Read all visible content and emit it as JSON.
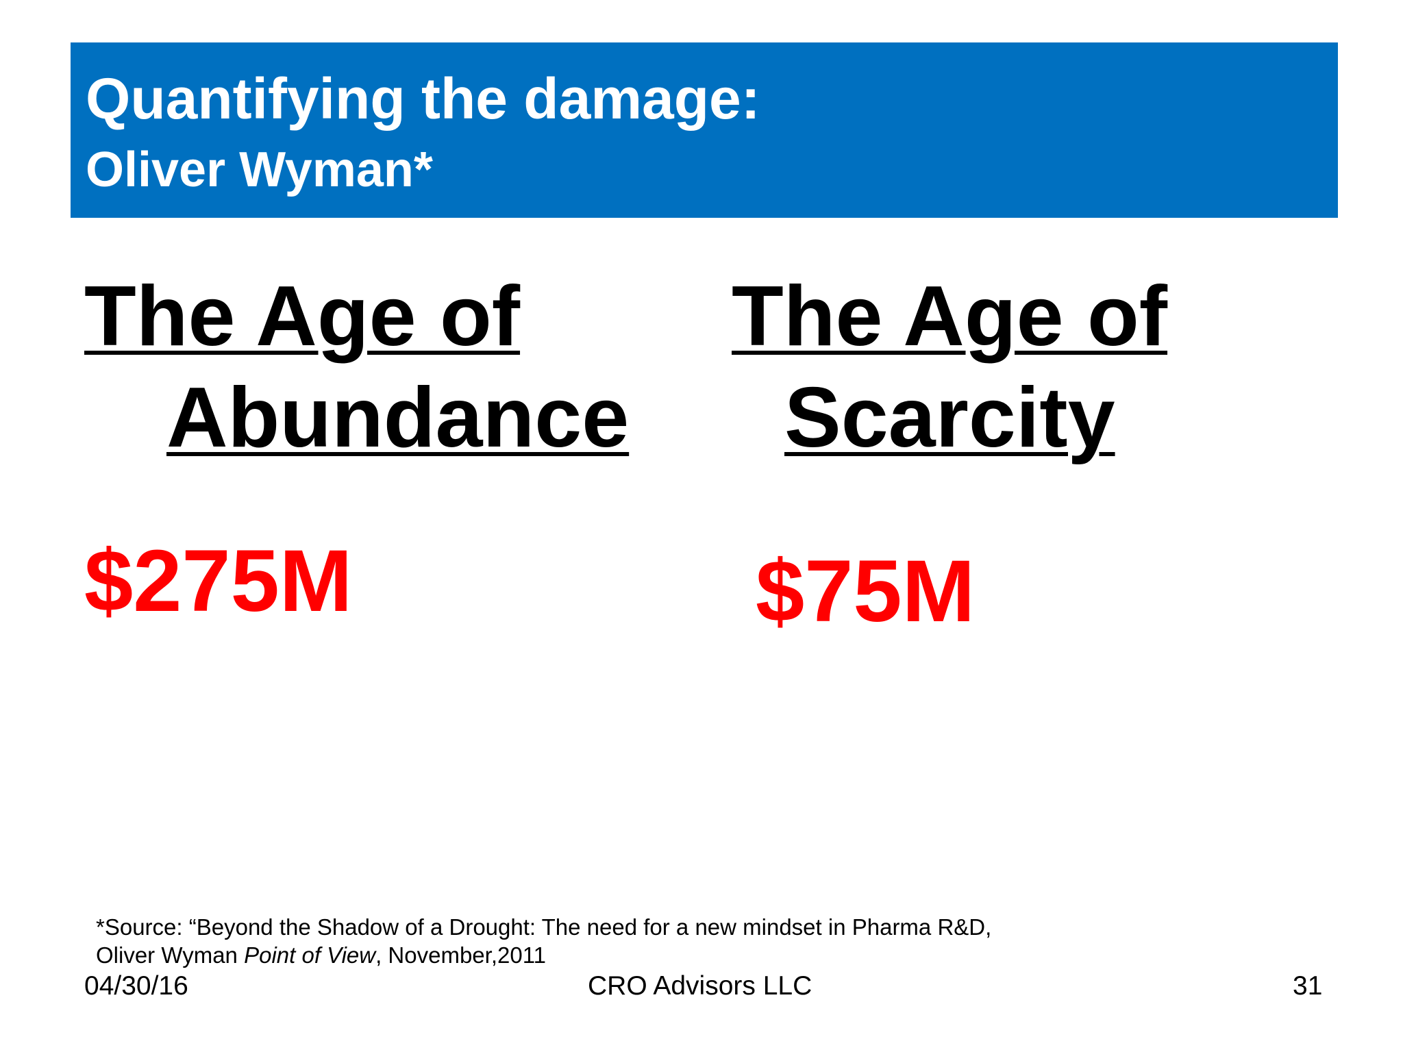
{
  "header": {
    "title": "Quantifying the damage:",
    "subtitle": "Oliver Wyman*",
    "background_color": "#0070c0"
  },
  "columns": [
    {
      "heading_line1": "The Age of",
      "heading_line2": "Abundance",
      "value": "$275M"
    },
    {
      "heading_line1": "The Age of",
      "heading_line2": "Scarcity",
      "value": "$75M"
    }
  ],
  "value_color": "#ff0000",
  "source": {
    "line1": "*Source:  “Beyond the Shadow of a Drought:  The need for a new mindset in Pharma R&D,",
    "line2_prefix": "Oliver Wyman ",
    "line2_italic": "Point of View",
    "line2_suffix": ", November,2011"
  },
  "footer": {
    "date": "04/30/16",
    "company": "CRO Advisors LLC",
    "page_number": "31"
  }
}
